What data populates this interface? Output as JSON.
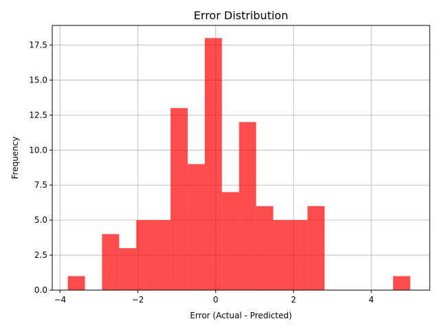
{
  "chart_data": {
    "type": "bar",
    "title": "Error Distribution",
    "xlabel": "Error (Actual - Predicted)",
    "ylabel": "Frequency",
    "xlim": [
      -4.2,
      5.5
    ],
    "ylim": [
      0,
      18.9
    ],
    "xticks": [
      -4,
      -2,
      0,
      2,
      4
    ],
    "xtick_labels": [
      "−4",
      "−2",
      "0",
      "2",
      "4"
    ],
    "yticks": [
      0,
      2.5,
      5,
      7.5,
      10,
      12.5,
      15,
      17.5
    ],
    "ytick_labels": [
      "0.0",
      "2.5",
      "5.0",
      "7.5",
      "10.0",
      "12.5",
      "15.0",
      "17.5"
    ],
    "grid": true,
    "bar_color": "#ff0000",
    "bar_alpha": 0.7,
    "bins": [
      {
        "x0": -3.8,
        "x1": -3.36,
        "count": 1
      },
      {
        "x0": -3.36,
        "x1": -2.92,
        "count": 0
      },
      {
        "x0": -2.92,
        "x1": -2.48,
        "count": 4
      },
      {
        "x0": -2.48,
        "x1": -2.04,
        "count": 3
      },
      {
        "x0": -2.04,
        "x1": -1.6,
        "count": 5
      },
      {
        "x0": -1.6,
        "x1": -1.16,
        "count": 5
      },
      {
        "x0": -1.16,
        "x1": -0.72,
        "count": 13
      },
      {
        "x0": -0.72,
        "x1": -0.28,
        "count": 9
      },
      {
        "x0": -0.28,
        "x1": 0.16,
        "count": 18
      },
      {
        "x0": 0.16,
        "x1": 0.6,
        "count": 7
      },
      {
        "x0": 0.6,
        "x1": 1.04,
        "count": 12
      },
      {
        "x0": 1.04,
        "x1": 1.48,
        "count": 6
      },
      {
        "x0": 1.48,
        "x1": 1.92,
        "count": 5
      },
      {
        "x0": 1.92,
        "x1": 2.36,
        "count": 5
      },
      {
        "x0": 2.36,
        "x1": 2.8,
        "count": 6
      },
      {
        "x0": 2.8,
        "x1": 3.24,
        "count": 0
      },
      {
        "x0": 3.24,
        "x1": 3.68,
        "count": 0
      },
      {
        "x0": 3.68,
        "x1": 4.12,
        "count": 0
      },
      {
        "x0": 4.12,
        "x1": 4.56,
        "count": 0
      },
      {
        "x0": 4.56,
        "x1": 5.0,
        "count": 1
      }
    ]
  }
}
